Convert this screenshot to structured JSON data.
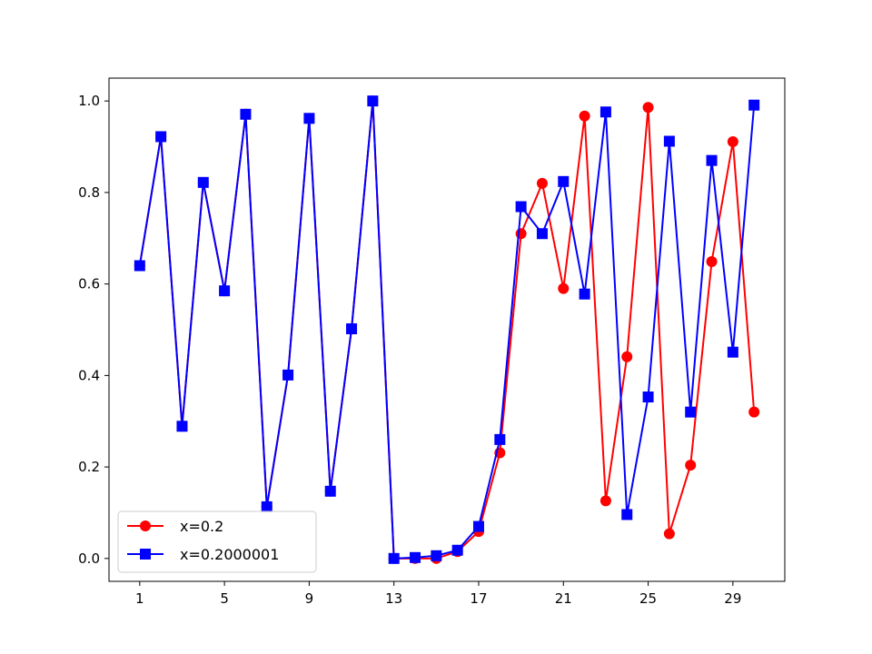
{
  "chart_data": {
    "type": "line",
    "x": [
      1,
      2,
      3,
      4,
      5,
      6,
      7,
      8,
      9,
      10,
      11,
      12,
      13,
      14,
      15,
      16,
      17,
      18,
      19,
      20,
      21,
      22,
      23,
      24,
      25,
      26,
      27,
      28,
      29,
      30
    ],
    "series": [
      {
        "name": "x=0.2",
        "color": "#ff0000",
        "marker": "circle",
        "values": [
          0.64,
          0.922,
          0.289,
          0.822,
          0.585,
          0.971,
          0.113,
          0.401,
          0.962,
          0.147,
          0.502,
          1.0,
          0.0,
          0.0,
          0.0,
          0.015,
          0.059,
          0.231,
          0.71,
          0.82,
          0.59,
          0.967,
          0.126,
          0.441,
          0.986,
          0.054,
          0.204,
          0.649,
          0.911,
          0.32
        ]
      },
      {
        "name": "x=0.2000001",
        "color": "#0000ff",
        "marker": "square",
        "values": [
          0.64,
          0.922,
          0.289,
          0.822,
          0.585,
          0.971,
          0.113,
          0.401,
          0.962,
          0.147,
          0.502,
          1.0,
          0.0,
          0.002,
          0.006,
          0.018,
          0.07,
          0.26,
          0.769,
          0.71,
          0.824,
          0.578,
          0.976,
          0.096,
          0.353,
          0.912,
          0.32,
          0.87,
          0.451,
          0.991
        ]
      }
    ],
    "xticks": [
      1,
      5,
      9,
      13,
      17,
      21,
      25,
      29
    ],
    "yticks": [
      0.0,
      0.2,
      0.4,
      0.6,
      0.8,
      1.0
    ],
    "xlim": [
      -0.45,
      31.45
    ],
    "ylim": [
      -0.05,
      1.05
    ],
    "legend_position": "lower-left",
    "grid": false,
    "title": "",
    "xlabel": "",
    "ylabel": ""
  }
}
